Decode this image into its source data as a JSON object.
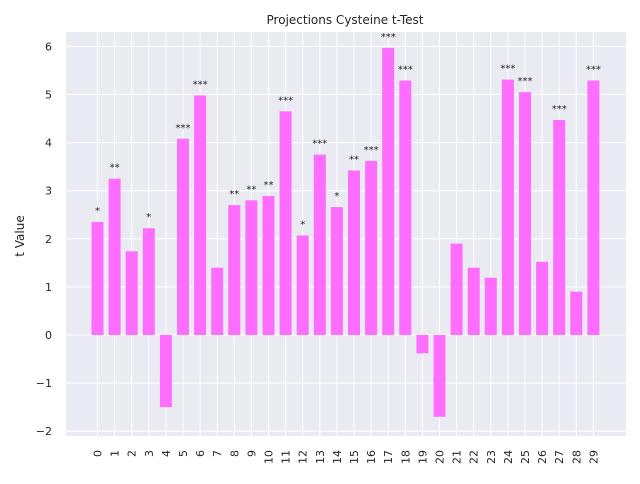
{
  "chart_data": {
    "type": "bar",
    "title": "Projections Cysteine t-Test",
    "xlabel": "",
    "ylabel": "t Value",
    "categories": [
      "0",
      "1",
      "2",
      "3",
      "4",
      "5",
      "6",
      "7",
      "8",
      "9",
      "10",
      "11",
      "12",
      "13",
      "14",
      "15",
      "16",
      "17",
      "18",
      "19",
      "20",
      "21",
      "22",
      "23",
      "24",
      "25",
      "26",
      "27",
      "28",
      "29"
    ],
    "values": [
      2.35,
      3.25,
      1.74,
      2.22,
      -1.5,
      4.08,
      4.98,
      1.4,
      2.7,
      2.8,
      2.89,
      4.65,
      2.07,
      3.75,
      2.66,
      3.42,
      3.62,
      5.97,
      5.29,
      -0.38,
      -1.7,
      1.9,
      1.4,
      1.19,
      5.31,
      5.05,
      1.52,
      4.47,
      0.9,
      5.29
    ],
    "annotations": [
      "*",
      "**",
      "",
      "*",
      "",
      "***",
      "***",
      "",
      "**",
      "**",
      "**",
      "***",
      "*",
      "***",
      "*",
      "**",
      "***",
      "***",
      "***",
      "",
      "",
      "",
      "",
      "",
      "***",
      "***",
      "",
      "***",
      "",
      "***"
    ],
    "yticks": [
      -2,
      -1,
      0,
      1,
      2,
      3,
      4,
      5,
      6
    ],
    "ylim": [
      -2.1,
      6.3
    ],
    "grid": true,
    "bar_color": "#ff66ff",
    "background_color": "#eaeaf2"
  }
}
